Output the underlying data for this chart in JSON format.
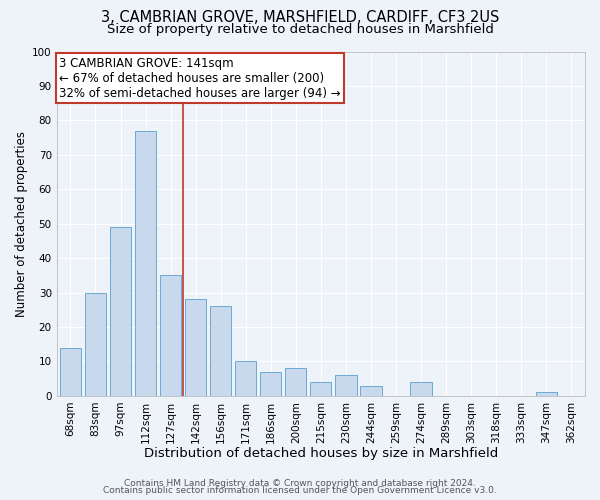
{
  "title": "3, CAMBRIAN GROVE, MARSHFIELD, CARDIFF, CF3 2US",
  "subtitle": "Size of property relative to detached houses in Marshfield",
  "xlabel": "Distribution of detached houses by size in Marshfield",
  "ylabel": "Number of detached properties",
  "bar_color": "#c8d9ee",
  "bar_edge_color": "#6aaad4",
  "background_color": "#eef2f9",
  "grid_color": "#ffffff",
  "categories": [
    "68sqm",
    "83sqm",
    "97sqm",
    "112sqm",
    "127sqm",
    "142sqm",
    "156sqm",
    "171sqm",
    "186sqm",
    "200sqm",
    "215sqm",
    "230sqm",
    "244sqm",
    "259sqm",
    "274sqm",
    "289sqm",
    "303sqm",
    "318sqm",
    "333sqm",
    "347sqm",
    "362sqm"
  ],
  "values": [
    14,
    30,
    49,
    77,
    35,
    28,
    26,
    10,
    7,
    8,
    4,
    6,
    3,
    0,
    4,
    0,
    0,
    0,
    0,
    1,
    0
  ],
  "vline_index": 5,
  "vline_color": "#c0392b",
  "annotation_line1": "3 CAMBRIAN GROVE: 141sqm",
  "annotation_line2": "← 67% of detached houses are smaller (200)",
  "annotation_line3": "32% of semi-detached houses are larger (94) →",
  "annotation_box_color": "#ffffff",
  "annotation_box_edge_color": "#c0392b",
  "ylim": [
    0,
    100
  ],
  "yticks": [
    0,
    10,
    20,
    30,
    40,
    50,
    60,
    70,
    80,
    90,
    100
  ],
  "footer1": "Contains HM Land Registry data © Crown copyright and database right 2024.",
  "footer2": "Contains public sector information licensed under the Open Government Licence v3.0.",
  "title_fontsize": 10.5,
  "subtitle_fontsize": 9.5,
  "xlabel_fontsize": 9.5,
  "ylabel_fontsize": 8.5,
  "tick_fontsize": 7.5,
  "footer_fontsize": 6.5,
  "annotation_fontsize": 8.5
}
